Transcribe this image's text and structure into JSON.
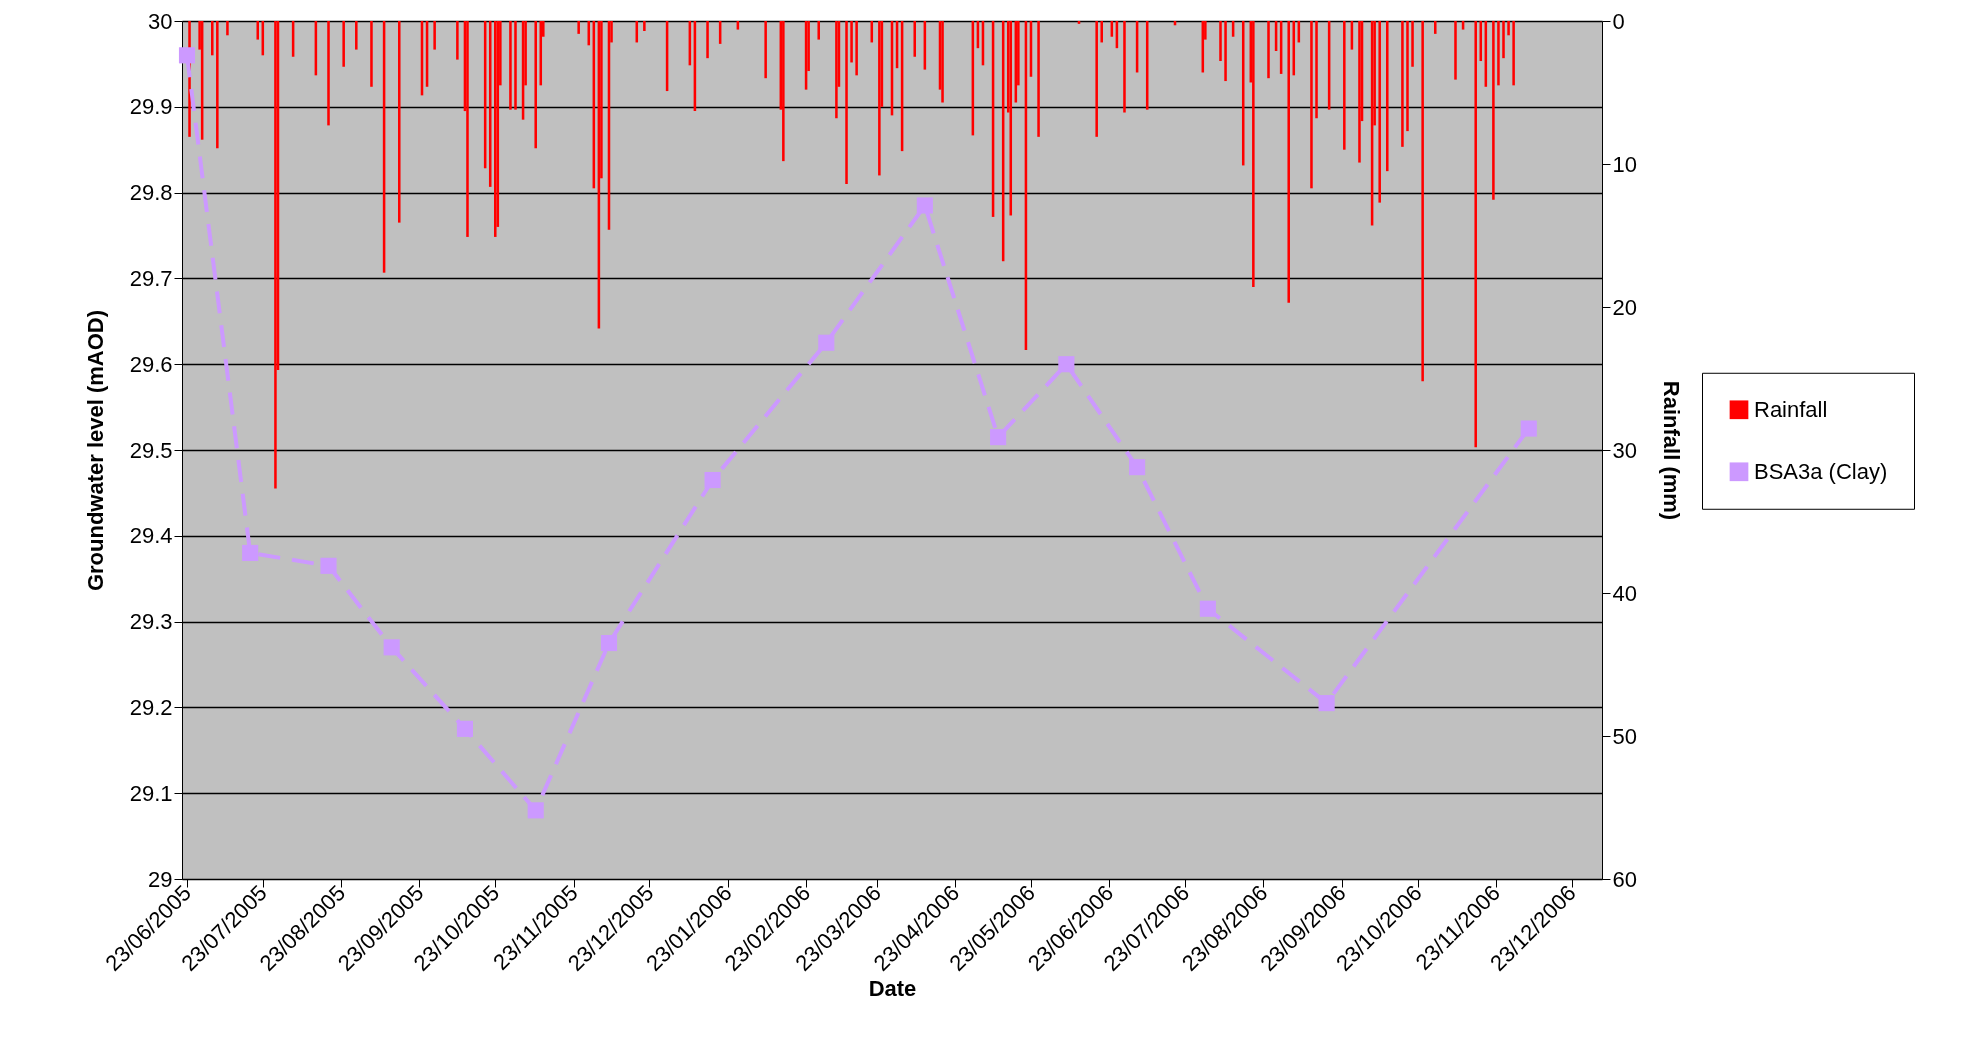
{
  "chart_data": {
    "type": "line",
    "xlabel": "Date",
    "ylabel": "Groundwater level (mAOD)",
    "y2label": "Rainfall (mm)",
    "xlim": [
      "2005-06-23",
      "2007-01-02"
    ],
    "xticks": [
      {
        "value": "2005-06-23",
        "label": "23/06/2005"
      },
      {
        "value": "2005-07-23",
        "label": "23/07/2005"
      },
      {
        "value": "2005-08-23",
        "label": "23/08/2005"
      },
      {
        "value": "2005-09-23",
        "label": "23/09/2005"
      },
      {
        "value": "2005-10-23",
        "label": "23/10/2005"
      },
      {
        "value": "2005-11-23",
        "label": "23/11/2005"
      },
      {
        "value": "2005-12-23",
        "label": "23/12/2005"
      },
      {
        "value": "2006-01-23",
        "label": "23/01/2006"
      },
      {
        "value": "2006-02-23",
        "label": "23/02/2006"
      },
      {
        "value": "2006-03-23",
        "label": "23/03/2006"
      },
      {
        "value": "2006-04-23",
        "label": "23/04/2006"
      },
      {
        "value": "2006-05-23",
        "label": "23/05/2006"
      },
      {
        "value": "2006-06-23",
        "label": "23/06/2006"
      },
      {
        "value": "2006-07-23",
        "label": "23/07/2006"
      },
      {
        "value": "2006-08-23",
        "label": "23/08/2006"
      },
      {
        "value": "2006-09-23",
        "label": "23/09/2006"
      },
      {
        "value": "2006-10-23",
        "label": "23/10/2006"
      },
      {
        "value": "2006-11-23",
        "label": "23/11/2006"
      },
      {
        "value": "2006-12-23",
        "label": "23/12/2006"
      }
    ],
    "ylim": [
      29,
      30
    ],
    "yticks": [
      29,
      29.1,
      29.2,
      29.3,
      29.4,
      29.5,
      29.6,
      29.7,
      29.8,
      29.9,
      30
    ],
    "y2lim": [
      60,
      0
    ],
    "y2ticks": [
      0,
      10,
      20,
      30,
      40,
      50,
      60
    ],
    "grid": "y",
    "legend": "right",
    "series": [
      {
        "name": "Rainfall",
        "type": "bar",
        "axis": "y2",
        "color": "#ff0000",
        "x": [
          "2005-06-24",
          "2005-06-28",
          "2005-06-29",
          "2005-07-03",
          "2005-07-05",
          "2005-07-09",
          "2005-07-21",
          "2005-07-23",
          "2005-07-28",
          "2005-07-29",
          "2005-08-04",
          "2005-08-13",
          "2005-08-18",
          "2005-08-24",
          "2005-08-29",
          "2005-09-04",
          "2005-09-09",
          "2005-09-15",
          "2005-09-24",
          "2005-09-26",
          "2005-09-29",
          "2005-10-08",
          "2005-10-11",
          "2005-10-12",
          "2005-10-19",
          "2005-10-21",
          "2005-10-23",
          "2005-10-24",
          "2005-10-25",
          "2005-10-29",
          "2005-10-31",
          "2005-11-03",
          "2005-11-04",
          "2005-11-08",
          "2005-11-10",
          "2005-11-11",
          "2005-11-25",
          "2005-11-29",
          "2005-12-01",
          "2005-12-03",
          "2005-12-04",
          "2005-12-07",
          "2005-12-08",
          "2005-12-18",
          "2005-12-21",
          "2005-12-30",
          "2006-01-08",
          "2006-01-10",
          "2006-01-15",
          "2006-01-20",
          "2006-01-27",
          "2006-02-07",
          "2006-02-13",
          "2006-02-14",
          "2006-02-23",
          "2006-02-24",
          "2006-02-28",
          "2006-03-07",
          "2006-03-08",
          "2006-03-11",
          "2006-03-13",
          "2006-03-15",
          "2006-03-21",
          "2006-03-24",
          "2006-03-25",
          "2006-03-29",
          "2006-03-31",
          "2006-04-02",
          "2006-04-07",
          "2006-04-11",
          "2006-04-17",
          "2006-04-18",
          "2006-04-30",
          "2006-05-02",
          "2006-05-04",
          "2006-05-08",
          "2006-05-12",
          "2006-05-14",
          "2006-05-15",
          "2006-05-17",
          "2006-05-18",
          "2006-05-21",
          "2006-05-23",
          "2006-05-26",
          "2006-06-11",
          "2006-06-18",
          "2006-06-20",
          "2006-06-24",
          "2006-06-26",
          "2006-06-29",
          "2006-07-04",
          "2006-07-08",
          "2006-07-19",
          "2006-07-30",
          "2006-07-31",
          "2006-08-06",
          "2006-08-08",
          "2006-08-11",
          "2006-08-15",
          "2006-08-18",
          "2006-08-19",
          "2006-08-25",
          "2006-08-28",
          "2006-08-30",
          "2006-09-02",
          "2006-09-04",
          "2006-09-06",
          "2006-09-11",
          "2006-09-13",
          "2006-09-18",
          "2006-09-24",
          "2006-09-27",
          "2006-09-30",
          "2006-10-01",
          "2006-10-05",
          "2006-10-06",
          "2006-10-08",
          "2006-10-11",
          "2006-10-17",
          "2006-10-19",
          "2006-10-21",
          "2006-10-25",
          "2006-10-30",
          "2006-11-07",
          "2006-11-10",
          "2006-11-15",
          "2006-11-17",
          "2006-11-19",
          "2006-11-22",
          "2006-11-24",
          "2006-11-26",
          "2006-11-28",
          "2006-11-30"
        ],
        "values": [
          8.1,
          2.0,
          8.3,
          2.4,
          8.9,
          1.0,
          1.3,
          2.4,
          32.7,
          24.4,
          2.5,
          3.8,
          7.3,
          3.2,
          2.0,
          4.6,
          17.6,
          14.1,
          5.2,
          4.6,
          2.0,
          2.7,
          6.3,
          15.1,
          10.3,
          11.6,
          15.1,
          14.4,
          4.5,
          6.2,
          6.2,
          6.9,
          4.5,
          8.9,
          4.5,
          1.1,
          0.9,
          1.7,
          11.7,
          21.5,
          11.0,
          14.6,
          1.5,
          1.5,
          0.7,
          4.9,
          3.1,
          6.3,
          2.6,
          1.6,
          0.6,
          4.0,
          6.2,
          9.8,
          4.8,
          3.5,
          1.3,
          6.8,
          4.6,
          11.4,
          2.9,
          3.8,
          1.5,
          10.8,
          6.0,
          6.6,
          3.3,
          9.1,
          2.5,
          3.4,
          4.8,
          5.7,
          8.0,
          1.9,
          3.1,
          13.7,
          16.8,
          6.4,
          13.6,
          5.7,
          4.5,
          23.0,
          3.9,
          8.1,
          0.2,
          8.1,
          1.5,
          1.1,
          1.9,
          6.4,
          3.6,
          6.2,
          0.3,
          3.6,
          1.3,
          2.8,
          4.2,
          1.1,
          10.1,
          4.3,
          18.6,
          4.0,
          2.1,
          3.7,
          19.7,
          3.8,
          1.5,
          11.7,
          6.8,
          6.2,
          9.0,
          2.0,
          9.9,
          7.0,
          14.3,
          7.3,
          12.7,
          10.5,
          8.8,
          7.7,
          3.2,
          25.2,
          0.9,
          4.1,
          0.6,
          29.8,
          2.8,
          4.6,
          12.5,
          4.5,
          2.6,
          1.0,
          4.5
        ]
      },
      {
        "name": "BSA3a (Clay)",
        "color": "#cc99ff",
        "marker": "square",
        "line_style": "dashed",
        "x": [
          "2005-06-23",
          "2005-07-18",
          "2005-08-18",
          "2005-09-12",
          "2005-10-11",
          "2005-11-08",
          "2005-12-07",
          "2006-01-17",
          "2006-03-03",
          "2006-04-11",
          "2006-05-10",
          "2006-06-06",
          "2006-07-04",
          "2006-08-01",
          "2006-09-17",
          "2006-12-06"
        ],
        "values": [
          29.96,
          29.38,
          29.365,
          29.27,
          29.175,
          29.08,
          29.275,
          29.465,
          29.625,
          29.785,
          29.515,
          29.6,
          29.48,
          29.315,
          29.205,
          29.525
        ]
      }
    ]
  }
}
